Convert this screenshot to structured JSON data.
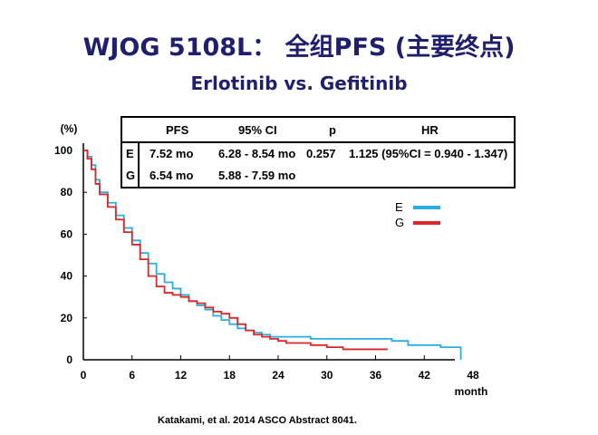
{
  "slide": {
    "title": "WJOG 5108L： 全组PFS (主要终点)",
    "subtitle": "Erlotinib vs. Gefitinib",
    "citation": "Katakami, et al. 2014 ASCO Abstract 8041."
  },
  "table": {
    "headers": [
      "PFS",
      "95% CI",
      "p",
      "HR"
    ],
    "rows": [
      {
        "label": "E",
        "pfs": "7.52 mo",
        "ci": "6.28 - 8.54 mo",
        "p": "0.257",
        "hr": "1.125 (95%CI = 0.940 - 1.347)"
      },
      {
        "label": "G",
        "pfs": "6.54 mo",
        "ci": "5.88 - 7.59 mo",
        "p": "",
        "hr": ""
      }
    ]
  },
  "chart_data": {
    "type": "line",
    "title": "",
    "xlabel": "month",
    "ylabel": "(%)",
    "xlim": [
      0,
      48
    ],
    "ylim": [
      0,
      100
    ],
    "xticks": [
      0,
      6,
      12,
      18,
      24,
      30,
      36,
      42,
      48
    ],
    "yticks": [
      0,
      20,
      40,
      60,
      80,
      100
    ],
    "legend_position": "right",
    "series": [
      {
        "name": "E",
        "color": "#29aee0",
        "step": true,
        "x": [
          0,
          0.5,
          1,
          1.5,
          2,
          3,
          4,
          5,
          6,
          7,
          8,
          9,
          10,
          11,
          12,
          13,
          14,
          15,
          16,
          17,
          18,
          19,
          20,
          21,
          22,
          23,
          24,
          25,
          26,
          28,
          30,
          32,
          34,
          36,
          38,
          40,
          42,
          44,
          46.5,
          46.5
        ],
        "y": [
          100,
          97,
          93,
          86,
          80,
          75,
          69,
          63,
          57,
          51,
          46,
          41,
          37,
          34,
          31,
          28,
          26,
          24,
          21,
          19,
          17,
          15,
          14,
          13,
          12,
          11,
          11,
          11,
          11,
          10,
          10,
          10,
          10,
          10,
          9,
          7,
          7,
          6,
          6,
          0
        ]
      },
      {
        "name": "G",
        "color": "#d9262b",
        "step": true,
        "x": [
          0,
          0.5,
          1,
          1.5,
          2,
          3,
          4,
          5,
          6,
          7,
          8,
          9,
          10,
          11,
          12,
          13,
          14,
          15,
          16,
          17,
          18,
          19,
          20,
          21,
          22,
          23,
          24,
          25,
          26,
          28,
          30,
          32,
          34,
          36,
          37.5
        ],
        "y": [
          100,
          96,
          91,
          84,
          79,
          73,
          67,
          61,
          55,
          48,
          40,
          35,
          32,
          31,
          30,
          28,
          27,
          25,
          23,
          22,
          20,
          17,
          14,
          12,
          11,
          10,
          9,
          8,
          8,
          7,
          6,
          5,
          5,
          5,
          5
        ]
      }
    ]
  }
}
